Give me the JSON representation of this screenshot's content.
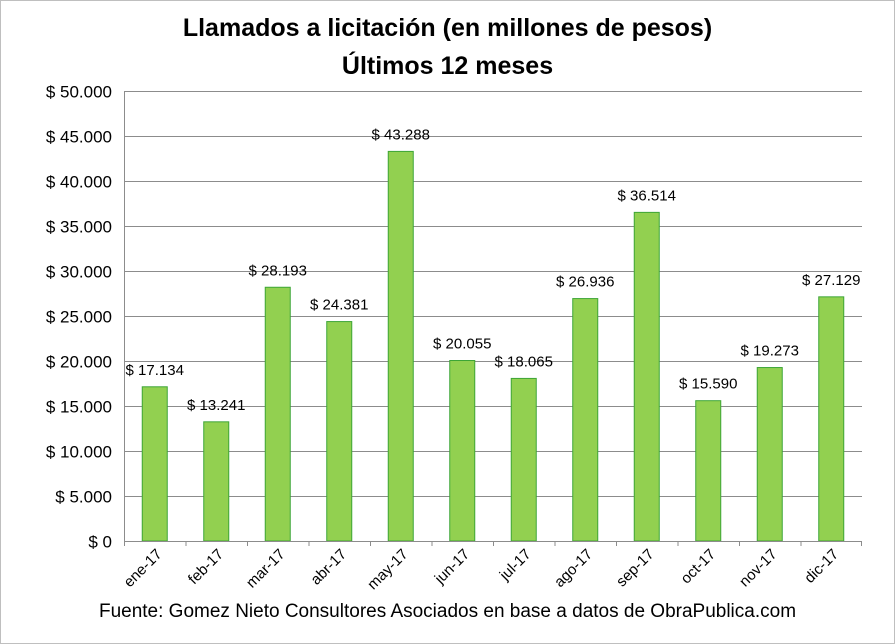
{
  "chart_data": {
    "type": "bar",
    "title": "Llamados a licitación (en millones de pesos)",
    "subtitle": "Últimos 12 meses",
    "source": "Fuente: Gomez Nieto Consultores Asociados en base a datos de ObraPublica.com",
    "categories": [
      "ene-17",
      "feb-17",
      "mar-17",
      "abr-17",
      "may-17",
      "jun-17",
      "jul-17",
      "ago-17",
      "sep-17",
      "oct-17",
      "nov-17",
      "dic-17"
    ],
    "values": [
      17134,
      13241,
      28193,
      24381,
      43288,
      20055,
      18065,
      26936,
      36514,
      15590,
      19273,
      27129
    ],
    "data_labels": [
      "$ 17.134",
      "$ 13.241",
      "$ 28.193",
      "$ 24.381",
      "$ 43.288",
      "$ 20.055",
      "$ 18.065",
      "$ 26.936",
      "$ 36.514",
      "$ 15.590",
      "$ 19.273",
      "$ 27.129"
    ],
    "ylim": [
      0,
      50000
    ],
    "yticks": [
      0,
      5000,
      10000,
      15000,
      20000,
      25000,
      30000,
      35000,
      40000,
      45000,
      50000
    ],
    "ytick_labels": [
      "$ 0",
      "$ 5.000",
      "$ 10.000",
      "$ 15.000",
      "$ 20.000",
      "$ 25.000",
      "$ 30.000",
      "$ 35.000",
      "$ 40.000",
      "$ 45.000",
      "$ 50.000"
    ],
    "xlabel": "",
    "ylabel": "",
    "grid": true,
    "legend": "none",
    "colors": {
      "bar_fill": "#92d050",
      "bar_stroke": "#3da536",
      "grid": "#8c8c8c"
    }
  }
}
